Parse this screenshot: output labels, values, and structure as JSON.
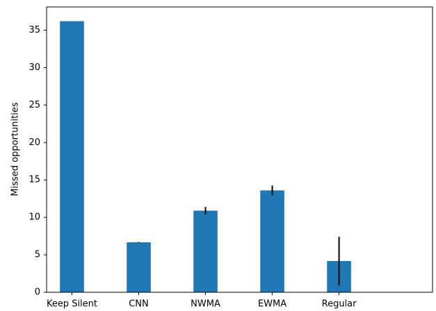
{
  "chart_data": {
    "type": "bar",
    "ylabel": "Missed opportunities",
    "categories": [
      "Keep Silent",
      "CNN",
      "NWMA",
      "EWMA",
      "Regular"
    ],
    "values": [
      36.2,
      6.67,
      10.9,
      13.6,
      4.17
    ],
    "errors": [
      0,
      0.05,
      0.5,
      0.65,
      3.25
    ],
    "color": "#1f77b4",
    "ylim": [
      0,
      38.1
    ],
    "yticks": [
      0,
      5,
      10,
      15,
      20,
      25,
      30,
      35
    ],
    "grid": false
  }
}
